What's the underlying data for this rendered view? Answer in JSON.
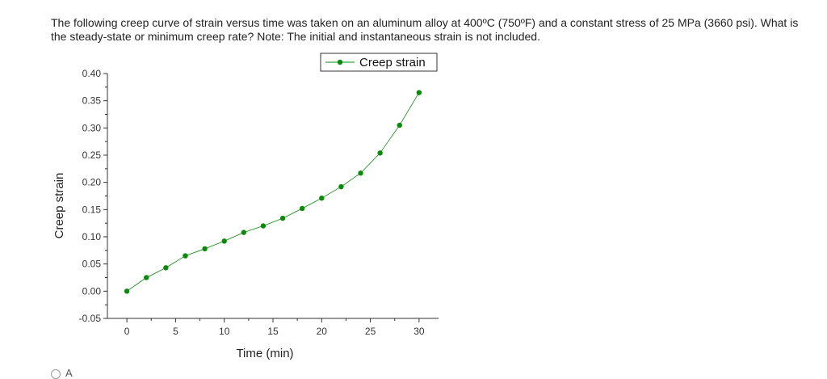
{
  "question": {
    "text": "The following creep curve of strain versus time was taken on an aluminum alloy at 400ºC (750ºF) and a constant stress of 25 MPa (3660 psi). What is the steady-state or minimum creep rate? Note: The initial and instantaneous strain is not included."
  },
  "chart_data": {
    "type": "line",
    "title": "",
    "xlabel": "Time (min)",
    "ylabel": "Creep strain",
    "xlim": [
      -2,
      32
    ],
    "ylim": [
      -0.05,
      0.4
    ],
    "xticks": [
      0,
      5,
      10,
      15,
      20,
      25,
      30
    ],
    "xtick_labels": [
      "0",
      "5",
      "10",
      "15",
      "20",
      "25",
      "30"
    ],
    "yticks": [
      -0.05,
      0.0,
      0.05,
      0.1,
      0.15,
      0.2,
      0.25,
      0.3,
      0.35,
      0.4
    ],
    "ytick_labels": [
      "-0.05",
      "0.00",
      "0.05",
      "0.10",
      "0.15",
      "0.20",
      "0.25",
      "0.30",
      "0.35",
      "0.40"
    ],
    "grid": false,
    "legend_position": "top-right",
    "series": [
      {
        "name": "Creep strain",
        "color": "#0a8a0a",
        "marker": "circle",
        "x": [
          0,
          2,
          4,
          6,
          8,
          10,
          12,
          14,
          16,
          18,
          20,
          22,
          24,
          26,
          28,
          30
        ],
        "y": [
          0.0,
          0.025,
          0.043,
          0.065,
          0.078,
          0.092,
          0.108,
          0.12,
          0.134,
          0.152,
          0.171,
          0.192,
          0.217,
          0.254,
          0.305,
          0.365
        ]
      }
    ]
  },
  "options_peek": {
    "first_letter": "A"
  }
}
